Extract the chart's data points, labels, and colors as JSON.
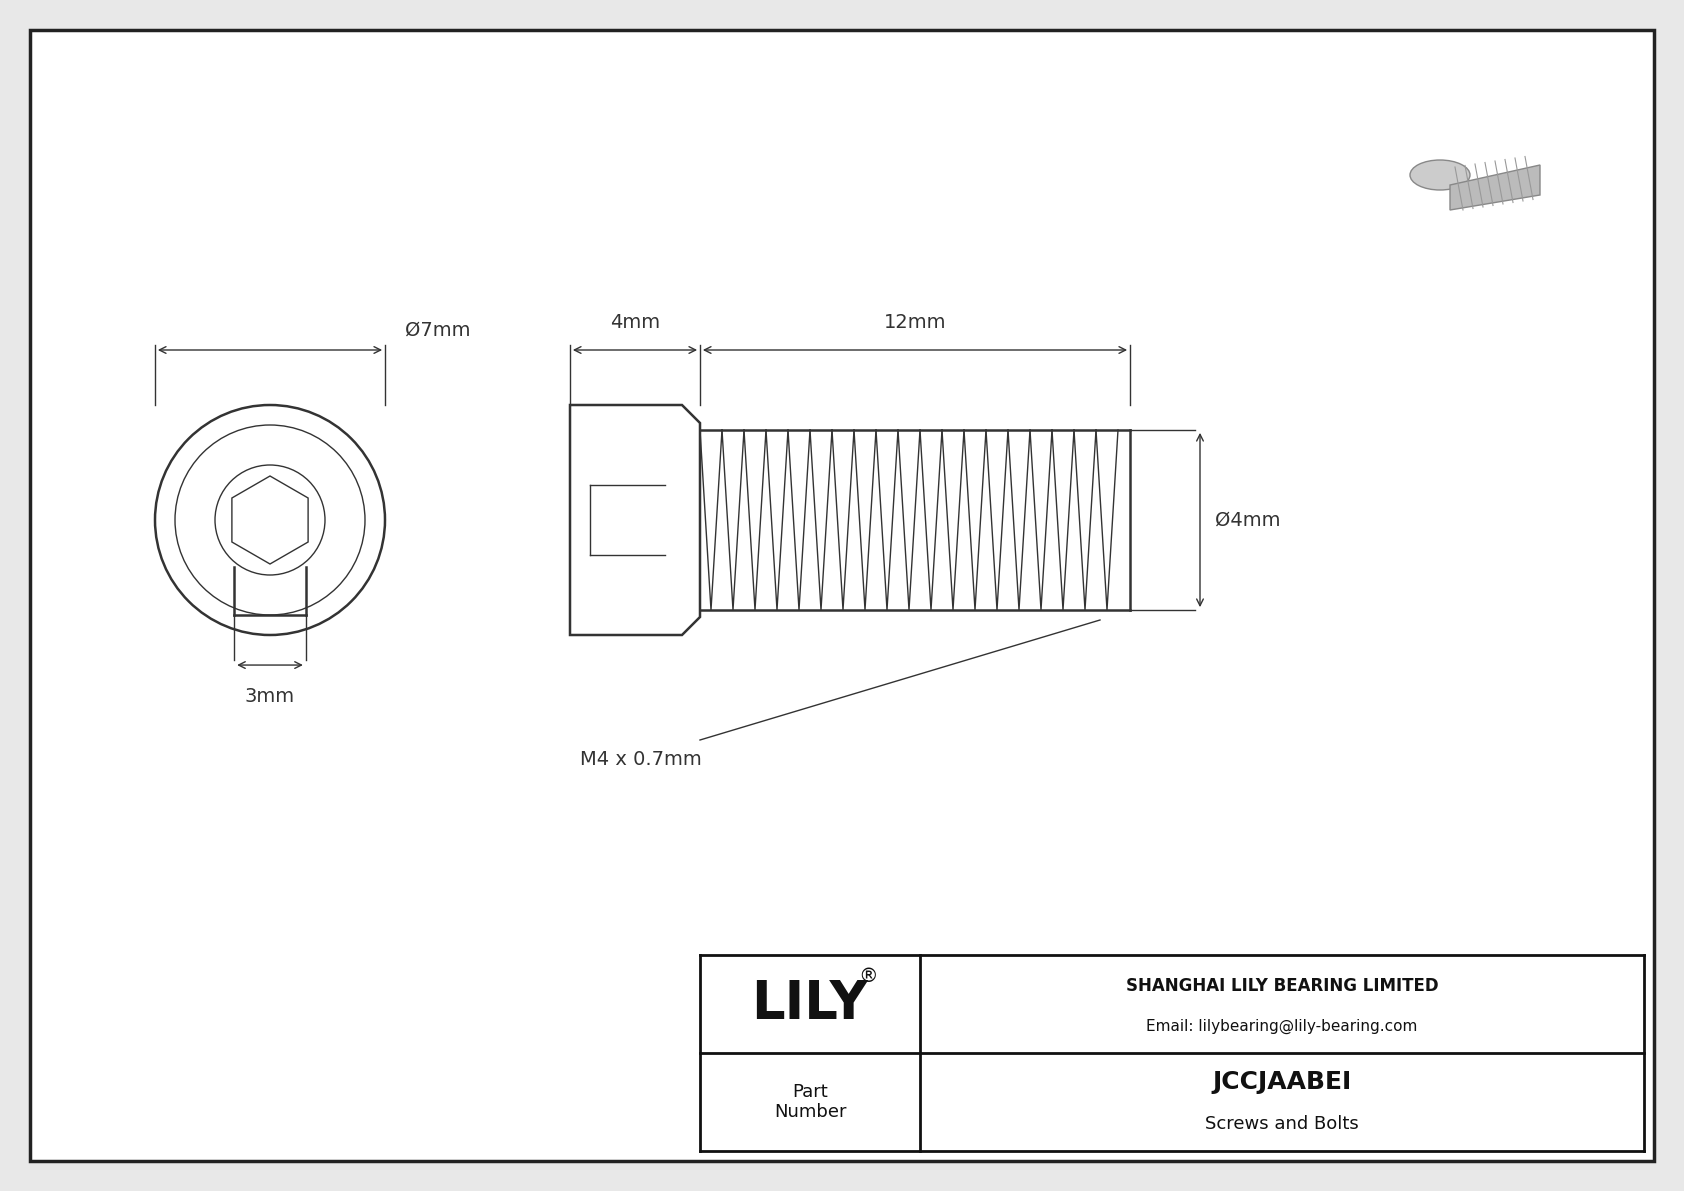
{
  "bg_color": "#e8e8e8",
  "inner_bg": "#ffffff",
  "border_color": "#222222",
  "line_color": "#333333",
  "title": "JCCJAABEI",
  "subtitle": "Screws and Bolts",
  "company": "SHANGHAI LILY BEARING LIMITED",
  "email": "Email: lilybearing@lily-bearing.com",
  "part_label": "Part\nNumber",
  "dim_head_diameter": "Ø7mm",
  "dim_head_length": "4mm",
  "dim_shank_length": "12mm",
  "dim_shank_diameter": "Ø4mm",
  "dim_hex": "3mm",
  "dim_thread": "M4 x 0.7mm",
  "lw_main": 1.8,
  "lw_thin": 1.0,
  "lw_dim": 1.0
}
